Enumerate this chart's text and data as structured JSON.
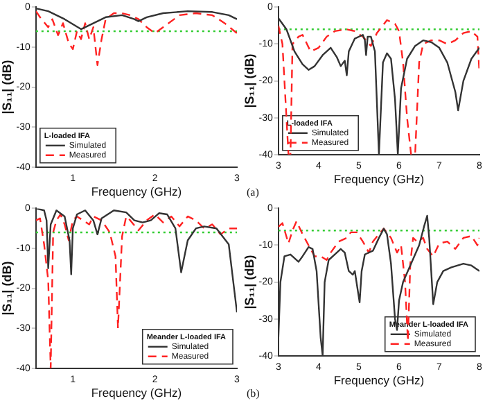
{
  "chart_data": [
    {
      "type": "line",
      "ylabel": "|S₁₁| (dB)",
      "xlabel": "Frequency (GHz)",
      "legend_title": "L-loaded IFA",
      "legend": "bottom left",
      "grid": false,
      "marker": "none",
      "xlim": [
        0.55,
        3
      ],
      "xticks": [
        1,
        2,
        3
      ],
      "ylim": [
        -40,
        0
      ],
      "yticks": [
        0,
        -10,
        -20,
        -30,
        -40
      ],
      "ref_lines": [
        {
          "axis": "y",
          "value": -6,
          "color": "#33cc33",
          "line_style": "dotted"
        }
      ],
      "series": [
        {
          "name": "Simulated",
          "color": "#333333",
          "line_style": "solid",
          "x": [
            0.55,
            0.7,
            0.9,
            1.1,
            1.2,
            1.4,
            1.6,
            1.75,
            1.8,
            1.9,
            2.1,
            2.4,
            2.7,
            2.9,
            3
          ],
          "values": [
            -0.3,
            -1,
            -3,
            -5.5,
            -4.5,
            -2.5,
            -2,
            -3,
            -3.5,
            -2.5,
            -1.5,
            -1,
            -1.2,
            -2,
            -3
          ]
        },
        {
          "name": "Measured",
          "color": "#ff2222",
          "line_style": "dashed",
          "x": [
            0.55,
            0.6,
            0.7,
            0.75,
            0.82,
            0.88,
            0.95,
            1.0,
            1.05,
            1.1,
            1.15,
            1.2,
            1.25,
            1.3,
            1.35,
            1.4,
            1.5,
            1.6,
            1.7,
            1.8,
            1.9,
            2.0,
            2.1,
            2.3,
            2.5,
            2.7,
            2.85,
            3
          ],
          "values": [
            -1,
            -2.5,
            -5,
            -3,
            -7,
            -4,
            -9,
            -10.5,
            -6,
            -8,
            -4,
            -8,
            -5,
            -14.5,
            -8,
            -3,
            -1.5,
            -1.5,
            -2,
            -3,
            -5,
            -6.5,
            -5,
            -2,
            -1.5,
            -2,
            -4,
            -6.5
          ]
        }
      ]
    },
    {
      "type": "line",
      "ylabel": "|S₁₁| (dB)",
      "xlabel": "Frequency (GHz)",
      "legend_title": "L-loaded IFA",
      "legend": "bottom left",
      "grid": false,
      "marker": "none",
      "annotations": [
        "(a)"
      ],
      "xlim": [
        3,
        8
      ],
      "xticks": [
        3,
        4,
        5,
        6,
        7,
        8
      ],
      "ylim": [
        -40,
        0
      ],
      "yticks": [
        0,
        -10,
        -20,
        -30,
        -40
      ],
      "ref_lines": [
        {
          "axis": "y",
          "value": -6,
          "color": "#33cc33",
          "line_style": "dotted"
        }
      ],
      "series": [
        {
          "name": "Simulated",
          "color": "#333333",
          "line_style": "solid",
          "x": [
            3,
            3.2,
            3.4,
            3.6,
            3.75,
            3.9,
            4.1,
            4.3,
            4.45,
            4.55,
            4.65,
            4.7,
            4.75,
            4.9,
            5.1,
            5.15,
            5.18,
            5.22,
            5.3,
            5.4,
            5.5,
            5.6,
            5.7,
            5.8,
            5.9,
            5.97,
            6.05,
            6.2,
            6.4,
            6.6,
            6.8,
            7.0,
            7.2,
            7.4,
            7.47,
            7.6,
            7.8,
            8
          ],
          "values": [
            -3,
            -6,
            -12,
            -15.5,
            -17,
            -16,
            -13,
            -11,
            -13.5,
            -16,
            -14.5,
            -18.5,
            -12,
            -8.5,
            -7.5,
            -9,
            -13,
            -8,
            -8,
            -12,
            -40,
            -15,
            -12.5,
            -14,
            -25,
            -40,
            -22,
            -14,
            -10.5,
            -9,
            -9.5,
            -11,
            -15,
            -23,
            -28,
            -20,
            -14,
            -11
          ]
        },
        {
          "name": "Measured",
          "color": "#ff2222",
          "line_style": "dashed",
          "x": [
            3,
            3.1,
            3.2,
            3.25,
            3.3,
            3.35,
            3.5,
            3.6,
            3.8,
            4.0,
            4.2,
            4.4,
            4.7,
            4.9,
            5.1,
            5.3,
            5.45,
            5.7,
            5.9,
            6.0,
            6.1,
            6.2,
            6.3,
            6.4,
            6.5,
            6.6,
            6.8,
            7.0,
            7.2,
            7.4,
            7.6,
            7.8,
            7.95,
            8
          ],
          "values": [
            -5,
            -10,
            -30,
            -40,
            -40,
            -10,
            -8,
            -7.5,
            -12,
            -11,
            -8,
            -6.5,
            -6,
            -6.5,
            -8,
            -10.5,
            -7,
            -3.5,
            -4.5,
            -6.5,
            -15,
            -30,
            -40,
            -40,
            -15,
            -10,
            -9,
            -9,
            -10,
            -9,
            -7,
            -6.5,
            -8,
            -18
          ]
        }
      ]
    },
    {
      "type": "line",
      "ylabel": "|S₁₁| (dB)",
      "xlabel": "Frequency (GHz)",
      "legend_title": "Meander L-loaded IFA",
      "legend": "bottom right",
      "grid": false,
      "marker": "none",
      "xlim": [
        0.55,
        3
      ],
      "xticks": [
        1,
        2,
        3
      ],
      "ylim": [
        -40,
        0
      ],
      "yticks": [
        0,
        -10,
        -20,
        -30,
        -40
      ],
      "ref_lines": [
        {
          "axis": "y",
          "value": -6,
          "color": "#33cc33",
          "line_style": "dotted"
        }
      ],
      "series": [
        {
          "name": "Simulated",
          "color": "#333333",
          "line_style": "solid",
          "x": [
            0.55,
            0.65,
            0.68,
            0.7,
            0.73,
            0.8,
            0.9,
            0.96,
            0.98,
            1.0,
            1.05,
            1.15,
            1.25,
            1.3,
            1.35,
            1.5,
            1.65,
            1.75,
            1.85,
            1.95,
            2.05,
            2.15,
            2.25,
            2.32,
            2.4,
            2.5,
            2.6,
            2.75,
            2.9,
            3
          ],
          "values": [
            0,
            -0.5,
            -3,
            -15,
            -4,
            -0.5,
            -2,
            -8,
            -16.5,
            -5,
            -1.5,
            -0.5,
            -3,
            -6.5,
            -2.5,
            -0.5,
            -1,
            -3,
            -3.5,
            -3,
            -1.2,
            -1.5,
            -5,
            -16,
            -8,
            -5,
            -4.5,
            -5,
            -9,
            -26
          ]
        },
        {
          "name": "Measured",
          "color": "#ff2222",
          "line_style": "dashed",
          "x": [
            0.55,
            0.6,
            0.65,
            0.7,
            0.73,
            0.76,
            0.8,
            0.85,
            0.9,
            0.95,
            1.0,
            1.05,
            1.2,
            1.25,
            1.35,
            1.45,
            1.52,
            1.55,
            1.6,
            1.65,
            1.7,
            1.8,
            1.9,
            2.0,
            2.1,
            2.2,
            2.3,
            2.4,
            2.5,
            2.6,
            2.7,
            2.8,
            2.9,
            3
          ],
          "values": [
            -3,
            -2.5,
            -9,
            -18,
            -40,
            -6,
            -3,
            -1.5,
            -4,
            -8,
            -3,
            -2,
            -4,
            -2,
            -3,
            -6,
            -12,
            -30,
            -7,
            -2,
            -3,
            -5.5,
            -3,
            -1.5,
            -3.5,
            -2,
            -4.5,
            -2,
            -3,
            -5,
            -4,
            -6.5,
            -5,
            -5
          ]
        }
      ]
    },
    {
      "type": "line",
      "ylabel": "|S₁₁| (dB)",
      "xlabel": "Frequency (GHz)",
      "legend_title": "Meander L-loaded IFA",
      "legend": "bottom right",
      "grid": false,
      "marker": "none",
      "annotations": [
        "(b)"
      ],
      "xlim": [
        3,
        8
      ],
      "xticks": [
        3,
        4,
        5,
        6,
        7,
        8
      ],
      "ylim": [
        -40,
        0
      ],
      "yticks": [
        0,
        -10,
        -20,
        -30,
        -40
      ],
      "ref_lines": [
        {
          "axis": "y",
          "value": -6,
          "color": "#33cc33",
          "line_style": "dotted"
        }
      ],
      "series": [
        {
          "name": "Simulated",
          "color": "#333333",
          "line_style": "solid",
          "x": [
            3,
            3.05,
            3.15,
            3.3,
            3.5,
            3.6,
            3.75,
            3.85,
            3.95,
            4.05,
            4.1,
            4.15,
            4.25,
            4.4,
            4.55,
            4.65,
            4.75,
            4.85,
            4.9,
            4.97,
            5.02,
            5.07,
            5.15,
            5.35,
            5.5,
            5.62,
            5.7,
            5.8,
            5.9,
            5.95,
            6.0,
            6.1,
            6.3,
            6.5,
            6.62,
            6.7,
            6.75,
            6.85,
            6.95,
            7.1,
            7.3,
            7.6,
            7.8,
            8
          ],
          "values": [
            -35,
            -20,
            -13,
            -12.5,
            -14.5,
            -13,
            -10.5,
            -11,
            -17,
            -35,
            -40,
            -20,
            -14,
            -12.5,
            -11,
            -12,
            -17,
            -18,
            -17,
            -22,
            -25.5,
            -17,
            -12.5,
            -11.5,
            -8,
            -5.5,
            -7,
            -15,
            -30,
            -33,
            -25,
            -20,
            -15,
            -10,
            -5,
            -2,
            -8,
            -26,
            -20,
            -17,
            -16,
            -15,
            -15.5,
            -17
          ]
        },
        {
          "name": "Measured",
          "color": "#ff2222",
          "line_style": "dashed",
          "x": [
            3,
            3.1,
            3.25,
            3.35,
            3.45,
            3.6,
            3.75,
            3.9,
            4.05,
            4.2,
            4.3,
            4.5,
            4.7,
            4.8,
            4.95,
            5.1,
            5.25,
            5.35,
            5.5,
            5.62,
            5.8,
            5.95,
            6.05,
            6.15,
            6.22,
            6.28,
            6.35,
            6.45,
            6.6,
            6.7,
            6.85,
            7.0,
            7.2,
            7.4,
            7.6,
            7.8,
            7.95,
            8
          ],
          "values": [
            -5,
            -4,
            -9.5,
            -6,
            -3.5,
            -7,
            -10,
            -13,
            -13,
            -14,
            -12,
            -9,
            -8,
            -6.5,
            -6.5,
            -9,
            -12,
            -9,
            -7,
            -5.5,
            -8,
            -12,
            -10,
            -20,
            -36,
            -15,
            -8,
            -9,
            -8,
            -11,
            -13,
            -9.5,
            -9,
            -11,
            -8,
            -7.5,
            -10,
            -8
          ]
        }
      ]
    }
  ]
}
